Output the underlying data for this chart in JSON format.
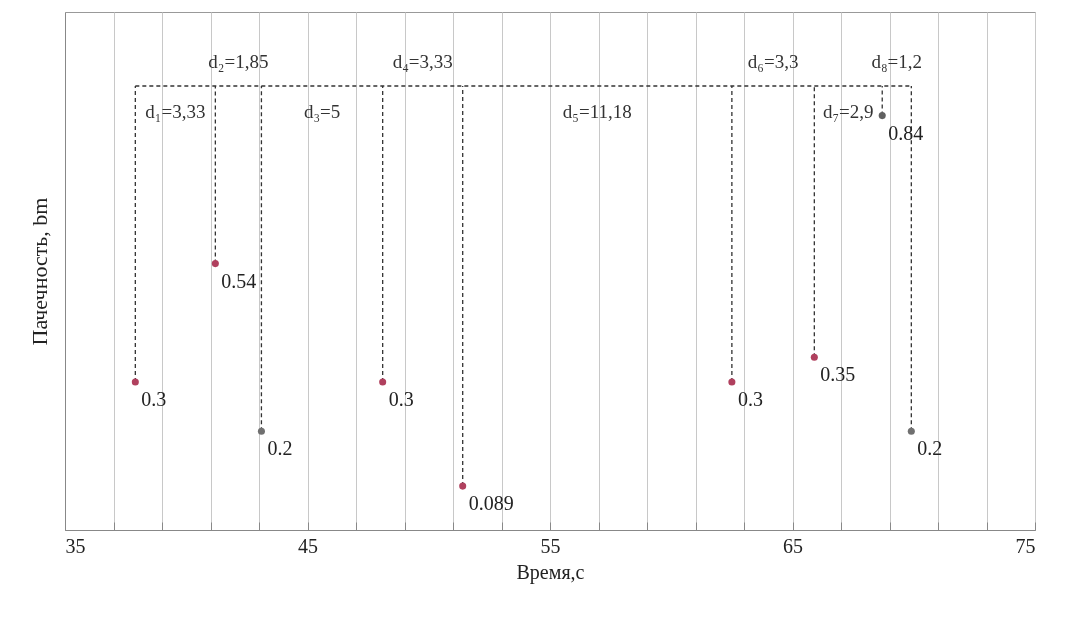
{
  "chart_data": {
    "type": "scatter",
    "xlabel": "Время,с",
    "ylabel": "Пачечность, bm",
    "x": [
      37.9,
      41.2,
      43.1,
      48.1,
      51.4,
      62.5,
      65.9,
      68.7,
      69.9
    ],
    "values": [
      0.3,
      0.54,
      0.2,
      0.3,
      0.089,
      0.3,
      0.35,
      0.84,
      0.2
    ],
    "colors": [
      "#b0405e",
      "#b0405e",
      "#707070",
      "#b0405e",
      "#b0405e",
      "#b0405e",
      "#b0405e",
      "#606060",
      "#707070"
    ],
    "data_labels": true,
    "marker": "circle",
    "grid": "x",
    "tick_labels": "x",
    "xlim": [
      35,
      75
    ],
    "ylim": [
      0,
      1.05
    ],
    "xticks": [
      35,
      {
        "value": 37,
        "label": null
      },
      {
        "value": 39,
        "label": null
      },
      {
        "value": 41,
        "label": null
      },
      {
        "value": 43,
        "label": null
      },
      45,
      {
        "value": 47,
        "label": null
      },
      {
        "value": 49,
        "label": null
      },
      {
        "value": 51,
        "label": null
      },
      {
        "value": 53,
        "label": null
      },
      55,
      {
        "value": 57,
        "label": null
      },
      {
        "value": 59,
        "label": null
      },
      {
        "value": 61,
        "label": null
      },
      {
        "value": 63,
        "label": null
      },
      65,
      {
        "value": 67,
        "label": null
      },
      {
        "value": 69,
        "label": null
      },
      {
        "value": 71,
        "label": null
      },
      {
        "value": 73,
        "label": null
      },
      75
    ],
    "ref_lines": [
      {
        "axis": "y",
        "value": 0.9,
        "line_style": "dashed",
        "color": "#333333"
      }
    ],
    "annotations": [
      "d₁=3,33",
      "d₂=1,85",
      "d₃=5",
      "d₄=3,33",
      "d₅=11,18",
      "d₆=3,3",
      "d₇=2,9",
      "d₈=1,2"
    ]
  }
}
